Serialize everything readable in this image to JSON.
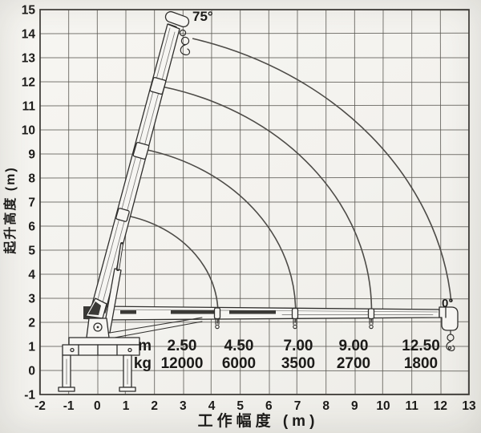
{
  "figure": {
    "kind": "crane working range and load chart",
    "paper_color": "#f6f5f2",
    "ink_color": "#2f2e2c"
  },
  "chart_data": {
    "type": "line",
    "title": "",
    "xlabel": "工作幅度 (m)",
    "ylabel": "起升高度 (m)",
    "xlim": [
      -2,
      13
    ],
    "ylim": [
      -1,
      15
    ],
    "grid": true,
    "x_ticks": [
      -2,
      -1,
      0,
      1,
      2,
      3,
      4,
      5,
      6,
      7,
      8,
      9,
      10,
      11,
      12,
      13
    ],
    "y_ticks": [
      -1,
      0,
      1,
      2,
      3,
      4,
      5,
      6,
      7,
      8,
      9,
      10,
      11,
      12,
      13,
      14,
      15
    ],
    "boom_pivot": {
      "x": 0,
      "y": 2.4
    },
    "boom_angle_labels": {
      "max": "75°",
      "min": "0°"
    },
    "envelope_arcs": [
      {
        "radius_m": 12.45,
        "start": {
          "x": 3.33,
          "y": 13.8
        },
        "end": {
          "x": 12.38,
          "y": 2.85
        }
      },
      {
        "radius_m": 9.6,
        "start": {
          "x": 2.26,
          "y": 11.8
        },
        "end": {
          "x": 9.58,
          "y": 1.98
        }
      },
      {
        "radius_m": 6.95,
        "start": {
          "x": 1.62,
          "y": 9.2
        },
        "end": {
          "x": 6.92,
          "y": 1.98
        }
      },
      {
        "radius_m": 4.18,
        "start": {
          "x": 0.97,
          "y": 6.45
        },
        "end": {
          "x": 4.2,
          "y": 1.95
        }
      }
    ],
    "load_table": {
      "rows": [
        {
          "label": "m",
          "values": [
            "2.50",
            "4.50",
            "7.00",
            "9.00",
            "12.50"
          ]
        },
        {
          "label": "kg",
          "values": [
            "12000",
            "6000",
            "3500",
            "2700",
            "1800"
          ]
        }
      ]
    }
  }
}
